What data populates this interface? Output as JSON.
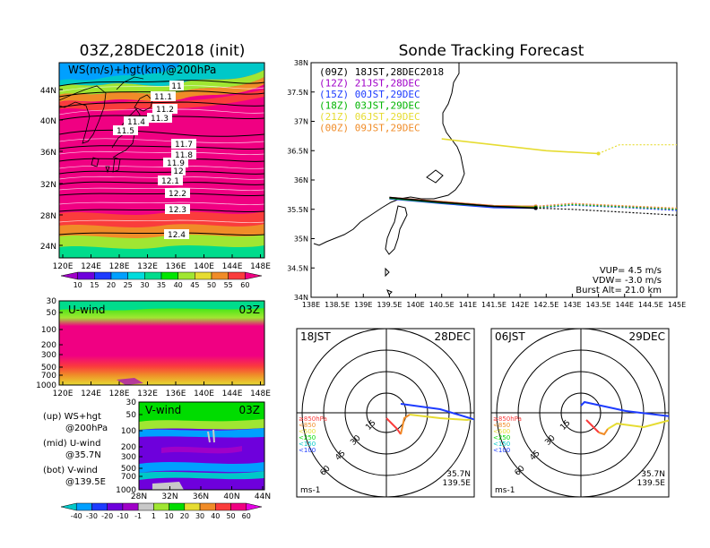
{
  "left": {
    "title": "03Z,28DEC2018 (init)",
    "map": {
      "label": "WS(m/s)+hgt(km)@200hPa",
      "lat_ticks": [
        "44N",
        "40N",
        "36N",
        "32N",
        "28N",
        "24N"
      ],
      "lon_ticks": [
        "120E",
        "124E",
        "128E",
        "132E",
        "136E",
        "140E",
        "144E",
        "148E"
      ],
      "contour_labels": [
        "11",
        "11.1",
        "11.2",
        "11.3",
        "11.4",
        "11.5",
        "11.7",
        "11.8",
        "11.9",
        "12",
        "12.1",
        "12.2",
        "12.3",
        "12.4"
      ]
    },
    "colorbar_top": {
      "labels": [
        "10",
        "15",
        "20",
        "25",
        "30",
        "35",
        "40",
        "45",
        "50",
        "55",
        "60"
      ],
      "colors": [
        "#a000c8",
        "#6e00dc",
        "#1e3cff",
        "#00a0ff",
        "#00dcdc",
        "#00dc8c",
        "#00e600",
        "#a0e632",
        "#e6dc32",
        "#f08c28",
        "#fa3c3c",
        "#f00082"
      ]
    },
    "uwind": {
      "label": "U-wind",
      "time": "03Z",
      "p_ticks": [
        "30",
        "50",
        "100",
        "200",
        "300",
        "500",
        "700",
        "1000"
      ],
      "lon_ticks": [
        "120E",
        "124E",
        "128E",
        "132E",
        "136E",
        "140E",
        "144E",
        "148E"
      ]
    },
    "vwind": {
      "label": "V-wind",
      "time": "03Z",
      "p_ticks": [
        "30",
        "50",
        "100",
        "200",
        "300",
        "500",
        "700",
        "1000"
      ],
      "lat_ticks": [
        "28N",
        "32N",
        "36N",
        "40N",
        "44N"
      ]
    },
    "notes": [
      {
        "a": "(up) WS+hgt",
        "b": "@200hPa"
      },
      {
        "a": "(mid) U-wind",
        "b": "@35.7N"
      },
      {
        "a": "(bot) V-wind",
        "b": "@139.5E"
      }
    ],
    "colorbar_bottom": {
      "labels": [
        "-40",
        "-30",
        "-20",
        "-10",
        "-1",
        "1",
        "10",
        "20",
        "30",
        "40",
        "50",
        "60"
      ],
      "colors": [
        "#00c8c8",
        "#00a0ff",
        "#1e3cff",
        "#6e00dc",
        "#a000c8",
        "#c8c8c8",
        "#a0e632",
        "#00dc00",
        "#e6dc32",
        "#f08c28",
        "#fa3c3c",
        "#f00082",
        "#e600e6"
      ]
    }
  },
  "right": {
    "title": "Sonde Tracking Forecast",
    "legend": [
      {
        "label": "(09Z) 18JST,28DEC2018",
        "color": "#000000"
      },
      {
        "label": "(12Z) 21JST,28DEC",
        "color": "#a000c8"
      },
      {
        "label": "(15Z) 00JST,29DEC",
        "color": "#1e3cff"
      },
      {
        "label": "(18Z) 03JST,29DEC",
        "color": "#00b400"
      },
      {
        "label": "(21Z) 06JST,29DEC",
        "color": "#e6dc32"
      },
      {
        "label": "(00Z) 09JST,29DEC",
        "color": "#f08c28"
      }
    ],
    "lat_ticks": [
      "38N",
      "37.5N",
      "37N",
      "36.5N",
      "36N",
      "35.5N",
      "35N",
      "34.5N",
      "34N"
    ],
    "lon_ticks": [
      "138E",
      "138.5E",
      "139E",
      "139.5E",
      "140E",
      "140.5E",
      "141E",
      "141.5E",
      "142E",
      "142.5E",
      "143E",
      "143.5E",
      "144E",
      "144.5E",
      "145E"
    ],
    "params": [
      "VUP= 4.5 m/s",
      "VDW= -3.0 m/s",
      "Burst Alt= 21.0 km"
    ],
    "hodographs": [
      {
        "time": "18JST",
        "date": "28DEC",
        "lat": "35.7N",
        "lon": "139.5E",
        "unit": "ms-1"
      },
      {
        "time": "06JST",
        "date": "29DEC",
        "lat": "35.7N",
        "lon": "139.5E",
        "unit": "ms-1"
      }
    ],
    "ring_labels": [
      "15",
      "30",
      "45",
      "60"
    ],
    "levels": [
      {
        "label": "≥850hPa",
        "color": "#fa3c3c"
      },
      {
        "label": "<850",
        "color": "#f08c28"
      },
      {
        "label": "<500",
        "color": "#e6dc32"
      },
      {
        "label": "<250",
        "color": "#00dc00"
      },
      {
        "label": "<150",
        "color": "#00c8c8"
      },
      {
        "label": "<100",
        "color": "#1e3cff"
      }
    ]
  },
  "chart_data": [
    {
      "type": "heatmap",
      "title": "03Z,28DEC2018 (init)",
      "label": "WS(m/s)+hgt(km)@200hPa",
      "x_range": [
        "120E",
        "149E"
      ],
      "y_range": [
        "22N",
        "47N"
      ],
      "contours_km": [
        11,
        11.1,
        11.2,
        11.3,
        11.4,
        11.5,
        11.7,
        11.8,
        11.9,
        12,
        12.1,
        12.2,
        12.3,
        12.4
      ]
    },
    {
      "type": "line",
      "title": "Sonde Tracking Forecast",
      "series": [
        {
          "name": "(09Z) 18JST,28DEC2018",
          "x": [
            139.5,
            140.5,
            141.5,
            142.3,
            143.0,
            144.0,
            145.0
          ],
          "y": [
            35.7,
            35.62,
            35.55,
            35.52,
            35.5,
            35.45,
            35.4
          ]
        },
        {
          "name": "(12Z) 21JST,28DEC",
          "x": [
            139.5,
            140.5,
            141.5,
            142.3,
            143.0,
            144.0,
            145.0
          ],
          "y": [
            35.7,
            35.63,
            35.56,
            35.55,
            35.6,
            35.55,
            35.5
          ]
        },
        {
          "name": "(15Z) 00JST,29DEC",
          "x": [
            139.5,
            140.5,
            141.5,
            142.3,
            143.0,
            144.0,
            145.0
          ],
          "y": [
            35.68,
            35.6,
            35.53,
            35.52,
            35.57,
            35.53,
            35.48
          ]
        },
        {
          "name": "(18Z) 03JST,29DEC",
          "x": [
            139.5,
            140.5,
            141.5,
            142.3,
            143.0,
            144.0,
            145.0
          ],
          "y": [
            35.69,
            35.61,
            35.55,
            35.53,
            35.58,
            35.54,
            35.5
          ]
        },
        {
          "name": "(21Z) 06JST,29DEC",
          "x": [
            140.5,
            141.5,
            142.5,
            143.5,
            143.9,
            144.5,
            145.0
          ],
          "y": [
            36.7,
            36.6,
            36.5,
            36.45,
            36.6,
            36.6,
            36.6
          ]
        },
        {
          "name": "(00Z) 09JST,29DEC",
          "x": [
            139.5,
            140.5,
            141.5,
            142.3,
            143.0,
            144.0,
            145.0
          ],
          "y": [
            35.7,
            35.63,
            35.56,
            35.55,
            35.6,
            35.56,
            35.52
          ]
        }
      ],
      "xlim": [
        138,
        145
      ],
      "ylim": [
        34,
        38
      ]
    }
  ]
}
